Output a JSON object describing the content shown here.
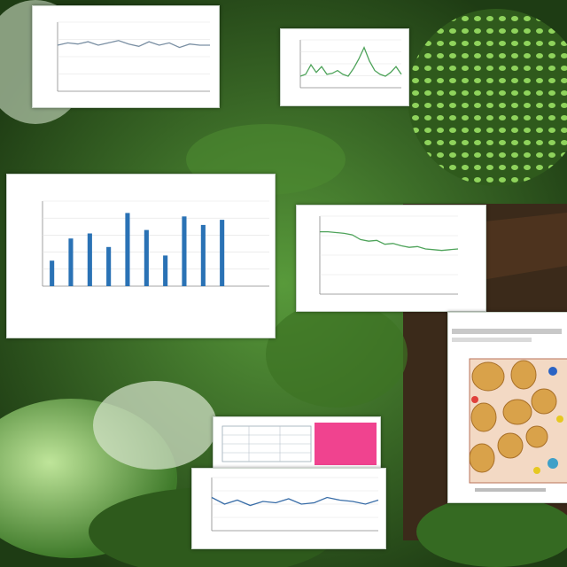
{
  "scene": {
    "colors": {
      "foliage_dark": "#1f3a14",
      "foliage_light": "#5fae3a",
      "glow_green": "#7cf05a",
      "bar_blue": "#2a72b5",
      "line_blue": "#3a6ea8",
      "line_green": "#4ea35a",
      "swatch_pink": "#f0438f",
      "potato": "#d9a24a"
    }
  },
  "cards": {
    "top_left": {
      "title": ""
    },
    "top_mid": {
      "title": ""
    },
    "big_bar": {
      "title": ""
    },
    "mid_line": {
      "title": ""
    },
    "right_doc": {
      "title": ""
    },
    "bottom_a": {
      "title": ""
    },
    "bottom_b": {
      "title": ""
    }
  },
  "overlay_texts": [],
  "chart_data": [
    {
      "type": "line",
      "x": [
        1,
        2,
        3,
        4,
        5,
        6,
        7,
        8,
        9,
        10,
        11,
        12,
        13,
        14,
        15,
        16
      ],
      "series": [
        {
          "values": [
            40,
            42,
            41,
            43,
            40,
            42,
            44,
            41,
            39,
            43,
            40,
            42,
            38,
            41,
            40,
            40
          ]
        }
      ],
      "ylim": [
        0,
        60
      ]
    },
    {
      "type": "line",
      "x": [
        1,
        2,
        3,
        4,
        5,
        6,
        7,
        8,
        9,
        10,
        11,
        12,
        13,
        14,
        15,
        16,
        17,
        18,
        19,
        20
      ],
      "series": [
        {
          "values": [
            12,
            14,
            24,
            16,
            22,
            14,
            15,
            18,
            14,
            12,
            20,
            30,
            42,
            28,
            18,
            14,
            12,
            16,
            22,
            14
          ]
        }
      ],
      "ylim": [
        0,
        50
      ]
    },
    {
      "type": "bar",
      "categories": [
        "",
        "",
        "",
        "",
        "",
        "",
        "",
        "",
        "",
        "",
        "",
        ""
      ],
      "values": [
        30,
        56,
        62,
        46,
        86,
        66,
        36,
        82,
        72,
        78,
        0,
        0
      ],
      "ylim": [
        0,
        100
      ]
    },
    {
      "type": "line",
      "x": [
        1,
        2,
        3,
        4,
        5,
        6,
        7,
        8,
        9,
        10,
        11,
        12,
        13,
        14,
        15,
        16,
        17,
        18
      ],
      "series": [
        {
          "values": [
            80,
            80,
            79,
            78,
            76,
            70,
            68,
            69,
            64,
            65,
            62,
            60,
            61,
            58,
            57,
            56,
            57,
            58
          ]
        }
      ],
      "ylim": [
        0,
        100
      ]
    },
    {
      "type": "line",
      "x": [
        1,
        2,
        3,
        4,
        5,
        6,
        7,
        8,
        9,
        10,
        11,
        12,
        13,
        14
      ],
      "series": [
        {
          "values": [
            50,
            40,
            46,
            38,
            44,
            42,
            48,
            40,
            42,
            50,
            46,
            44,
            40,
            46
          ]
        }
      ],
      "ylim": [
        0,
        80
      ]
    }
  ]
}
